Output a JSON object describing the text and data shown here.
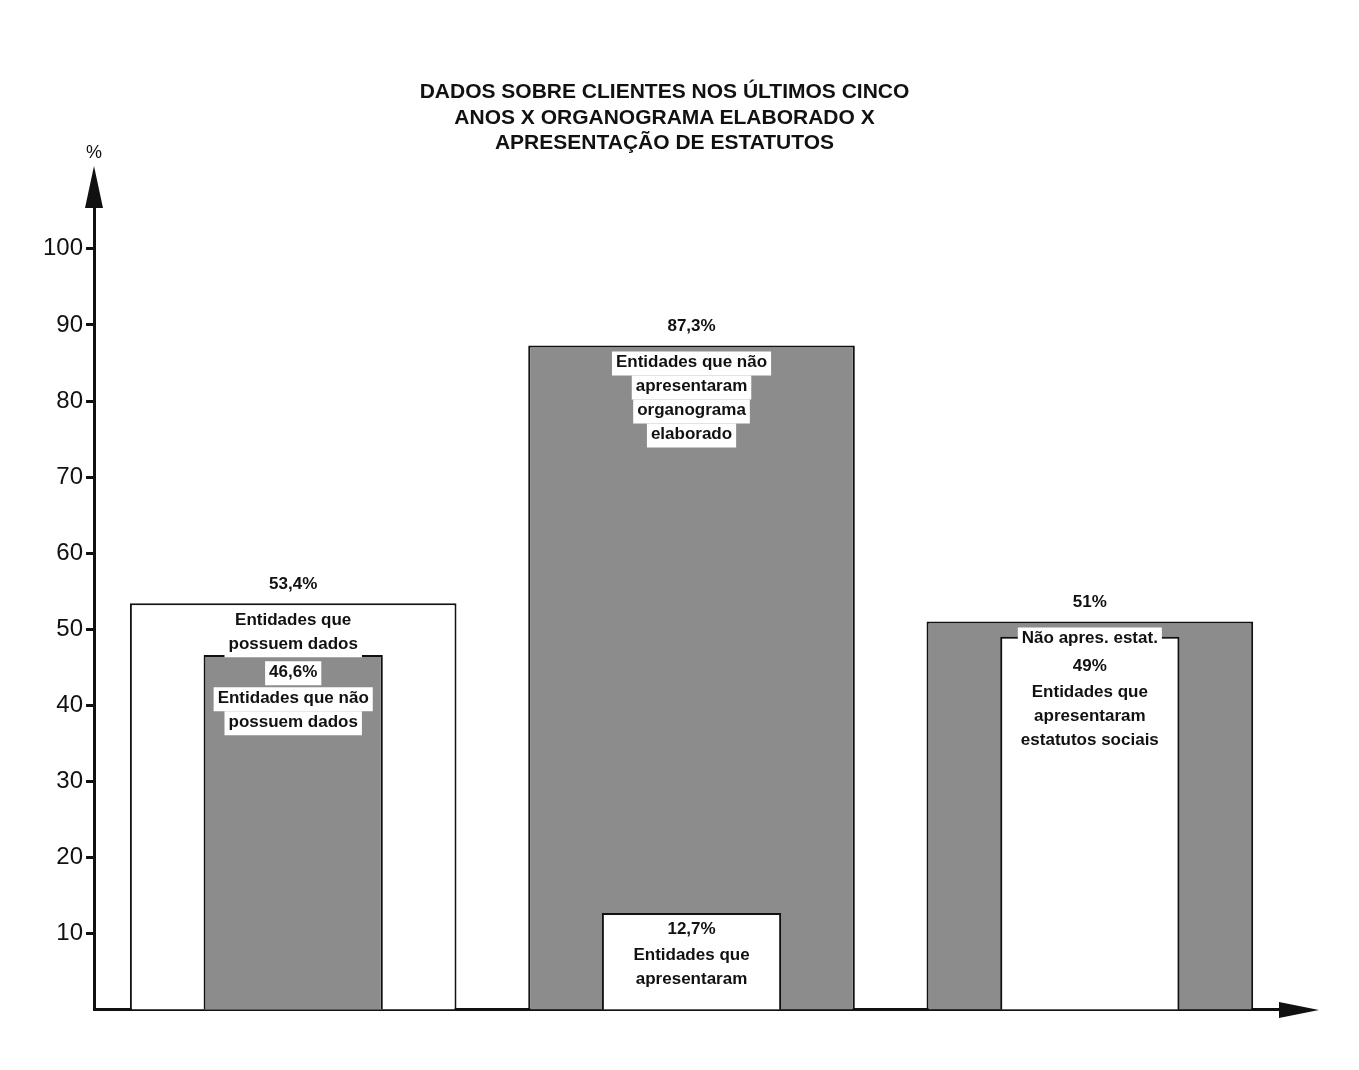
{
  "chart_data": {
    "type": "bar",
    "title": "DADOS SOBRE CLIENTES NOS ÚLTIMOS CINCO\nANOS X ORGANOGRAMA ELABORADO X\nAPRESENTAÇÃO DE ESTATUTOS",
    "ylabel": "%",
    "categories": [
      null,
      null,
      null
    ],
    "series": [
      {
        "colors": [
          "#ffffff",
          "#8c8c8c",
          "#8c8c8c"
        ],
        "values": [
          53.4,
          87.3,
          51
        ],
        "value_labels": [
          "53,4%",
          "87,3%",
          "51%"
        ]
      },
      {
        "colors": [
          "#8c8c8c",
          "#ffffff",
          "#ffffff"
        ],
        "values": [
          46.6,
          12.7,
          49
        ],
        "value_labels": [
          "46,6%",
          "12,7%",
          "49%"
        ]
      }
    ],
    "annotations": [
      "Entidades que possuem dados",
      "Entidades que não possuem dados",
      "Entidades que não apresentaram organograma elaborado",
      "Entidades que apresentaram",
      "Não apres. estat.",
      "Entidades que apresentaram estatutos sociais"
    ],
    "ylim": [
      0,
      107
    ],
    "yticks": [
      10,
      20,
      30,
      40,
      50,
      60,
      70,
      80,
      90,
      100
    ],
    "grid": false,
    "legend": false
  }
}
